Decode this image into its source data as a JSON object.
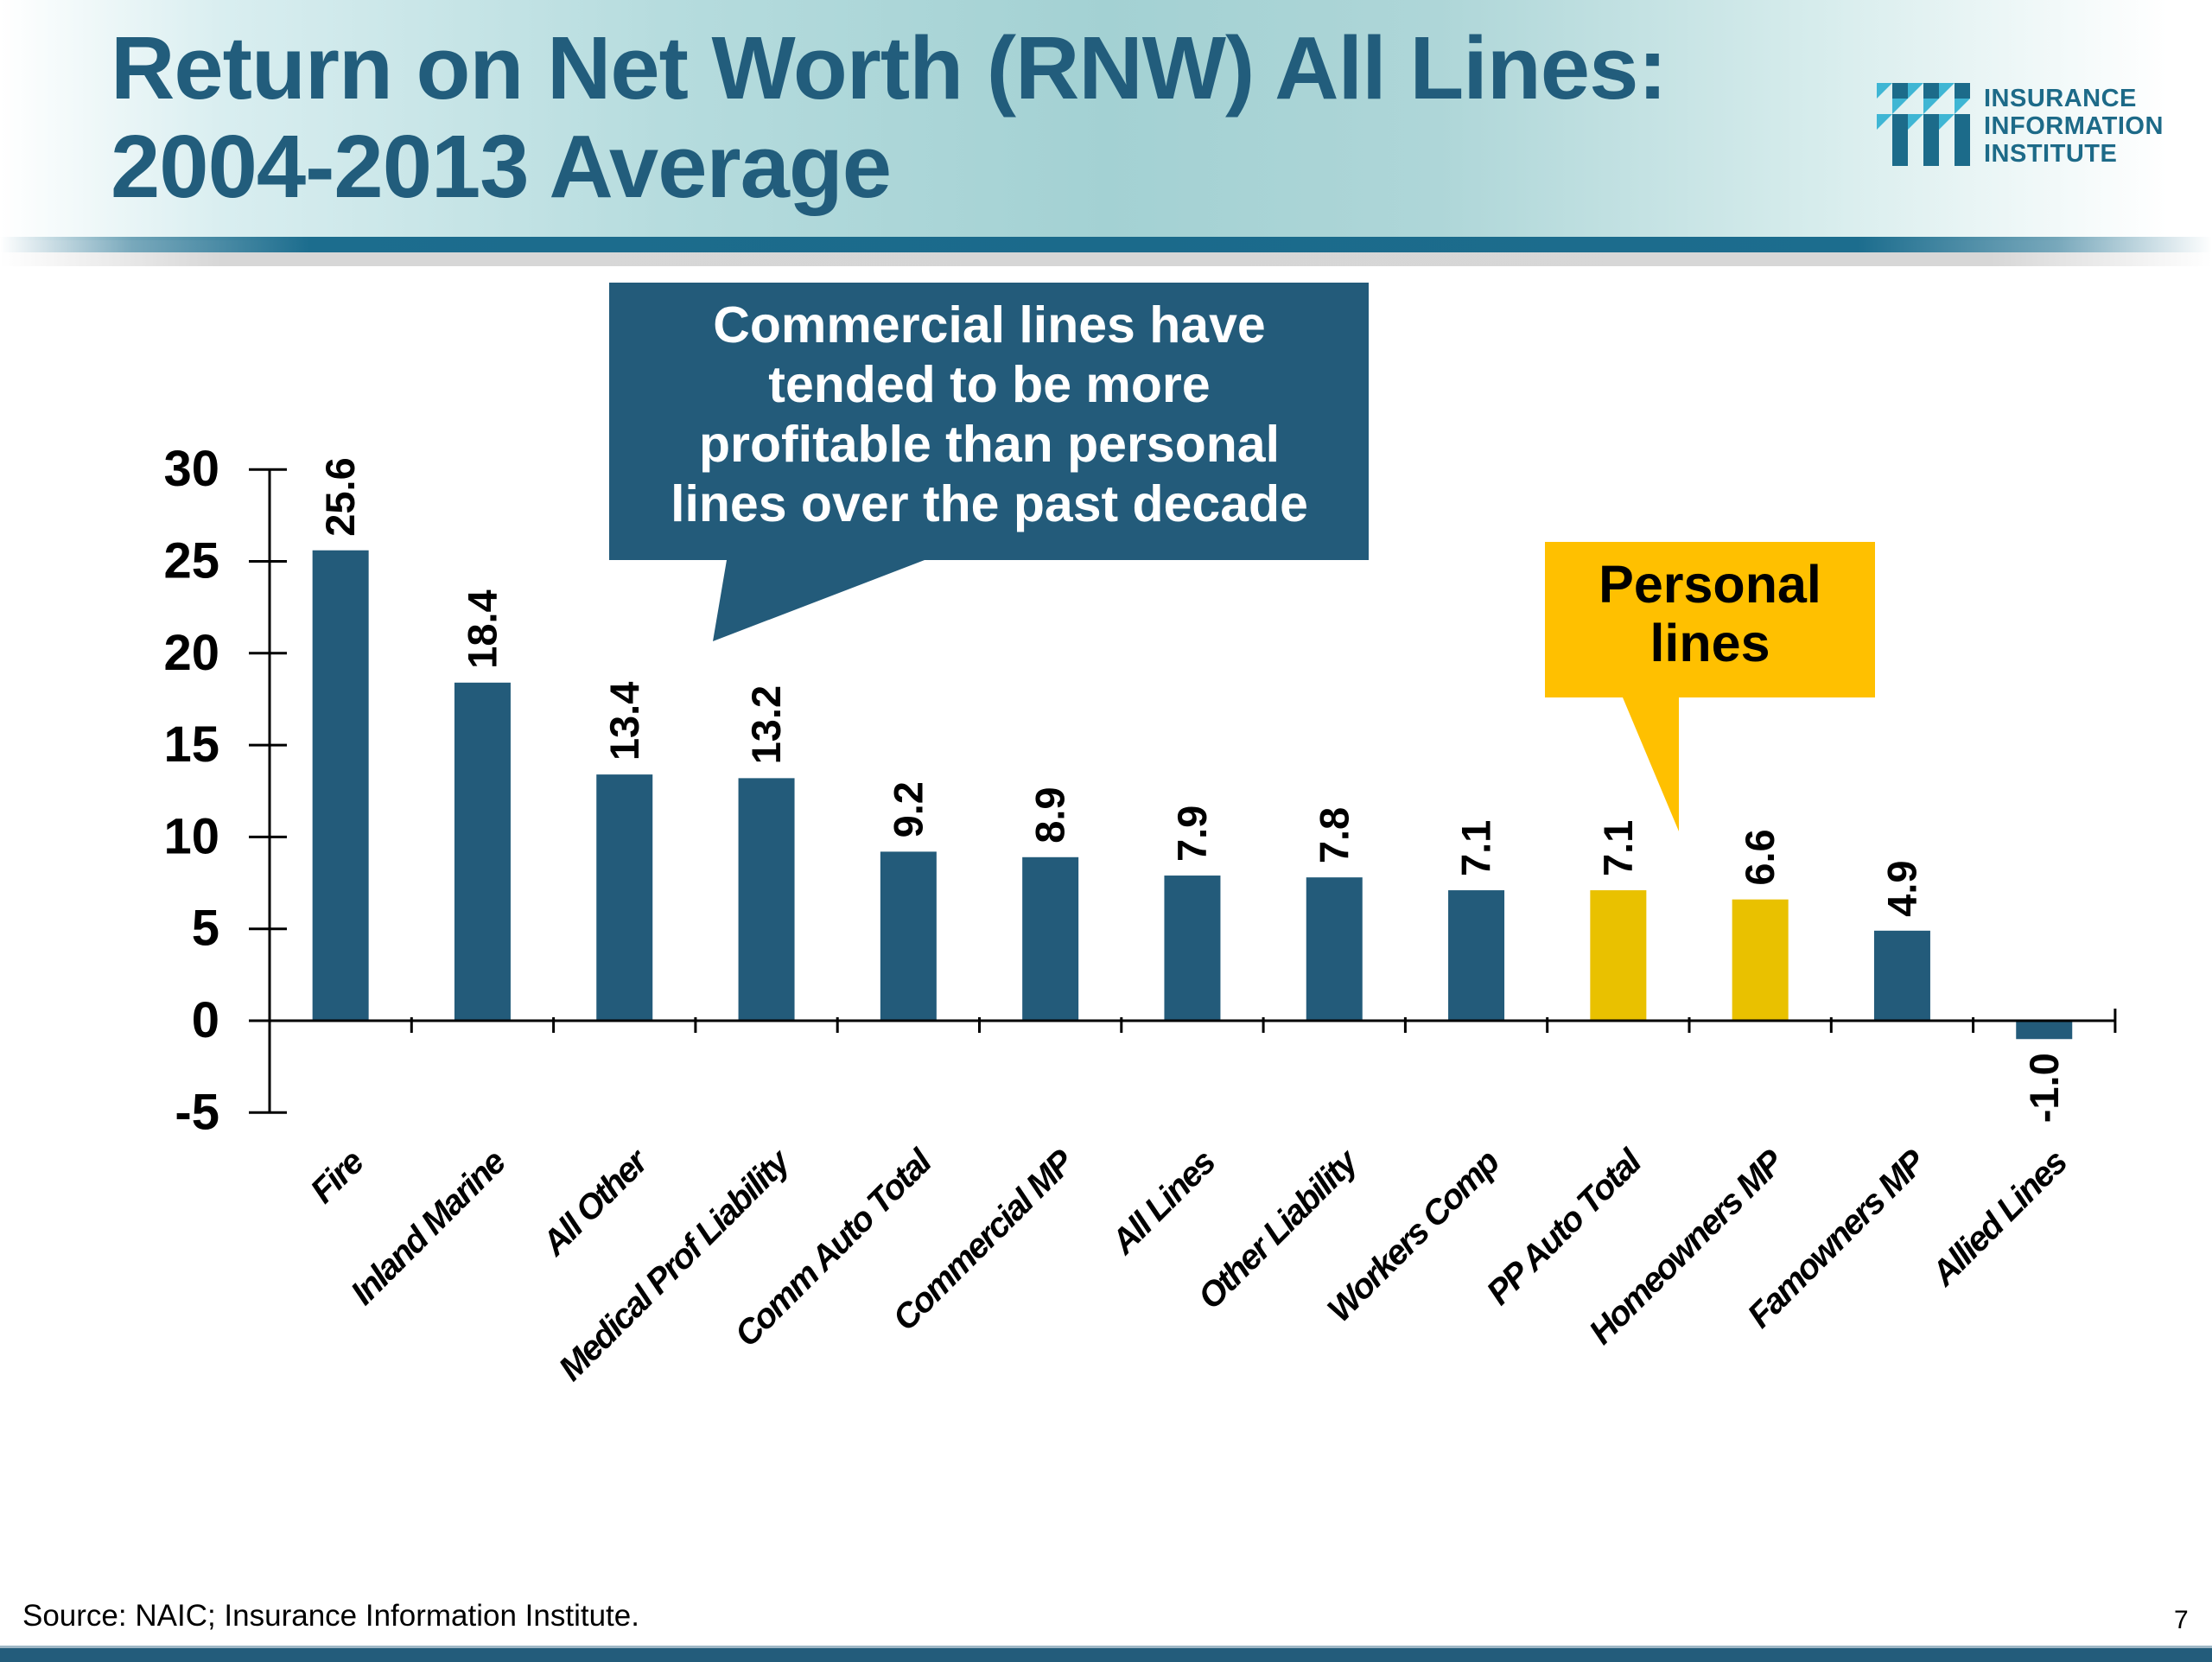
{
  "slide": {
    "title_line1": "Return on Net Worth (RNW) All Lines:",
    "title_line2": "2004-2013 Average",
    "logo": {
      "icon": "iii-logo-icon",
      "line1": "INSURANCE",
      "line2": "INFORMATION",
      "line3": "INSTITUTE"
    },
    "source": "Source: NAIC; Insurance Information Institute.",
    "page_number": "7"
  },
  "colors": {
    "commercial_bar": "#235b7a",
    "personal_bar": "#e9c100",
    "callout_commercial": "#235b7a",
    "callout_personal": "#ffc000",
    "title": "#225d7c"
  },
  "annotations": {
    "commercial": "Commercial lines have tended to be more profitable than personal lines over the past decade",
    "commercial_lines": [
      "Commercial lines have",
      "tended to be more",
      "profitable than personal",
      "lines over the past decade"
    ],
    "personal_lines": [
      "Personal",
      "lines"
    ]
  },
  "chart_data": {
    "type": "bar",
    "title": "Return on Net Worth (RNW) All Lines: 2004-2013 Average",
    "xlabel": "",
    "ylabel": "",
    "ylim": [
      -5,
      30
    ],
    "yticks": [
      -5,
      0,
      5,
      10,
      15,
      20,
      25,
      30
    ],
    "ytick_labels": [
      "-5",
      "0",
      "5",
      "10",
      "15",
      "20",
      "25",
      "30"
    ],
    "grid": false,
    "legend": "none",
    "categories": [
      "Fire",
      "Inland Marine",
      "All Other",
      "Medical Prof Liability",
      "Comm Auto Total",
      "Commercial MP",
      "All Lines",
      "Other Liability",
      "Workers Comp",
      "PP Auto Total",
      "Homeowners MP",
      "Famowners MP",
      "Allied Lines"
    ],
    "values": [
      25.6,
      18.4,
      13.4,
      13.2,
      9.2,
      8.9,
      7.9,
      7.8,
      7.1,
      7.1,
      6.6,
      4.9,
      -1.0
    ],
    "value_labels": [
      "25.6",
      "18.4",
      "13.4",
      "13.2",
      "9.2",
      "8.9",
      "7.9",
      "7.8",
      "7.1",
      "7.1",
      "6.6",
      "4.9",
      "-1.0"
    ],
    "highlight": [
      "commercial",
      "commercial",
      "commercial",
      "commercial",
      "commercial",
      "commercial",
      "commercial",
      "commercial",
      "commercial",
      "personal",
      "personal",
      "commercial",
      "commercial"
    ]
  }
}
